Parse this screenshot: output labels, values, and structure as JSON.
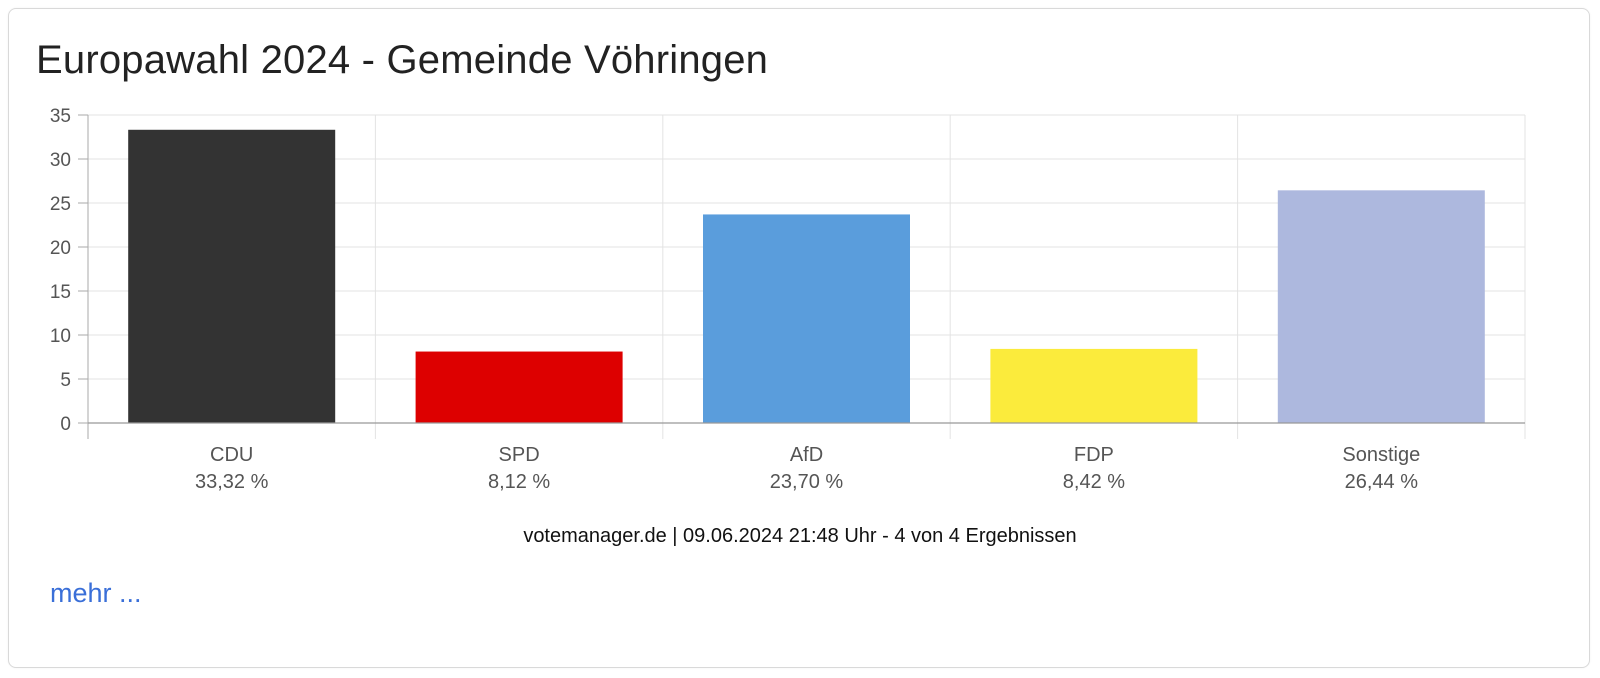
{
  "title": "Europawahl 2024 - Gemeinde Vöhringen",
  "source_line": "votemanager.de | 09.06.2024 21:48 Uhr - 4 von 4 Ergebnissen",
  "more_link": "mehr ...",
  "chart_data": {
    "type": "bar",
    "title": "Europawahl 2024 - Gemeinde Vöhringen",
    "xlabel": "",
    "ylabel": "",
    "ylim": [
      0,
      35
    ],
    "yticks": [
      0,
      5,
      10,
      15,
      20,
      25,
      30,
      35
    ],
    "grid": true,
    "categories": [
      "CDU",
      "SPD",
      "AfD",
      "FDP",
      "Sonstige"
    ],
    "values": [
      33.32,
      8.12,
      23.7,
      8.42,
      26.44
    ],
    "value_labels": [
      "33,32 %",
      "8,12 %",
      "23,70 %",
      "8,42 %",
      "26,44 %"
    ],
    "colors": [
      "#333333",
      "#dd0000",
      "#5a9ddc",
      "#fbeb3c",
      "#adb8de"
    ]
  }
}
